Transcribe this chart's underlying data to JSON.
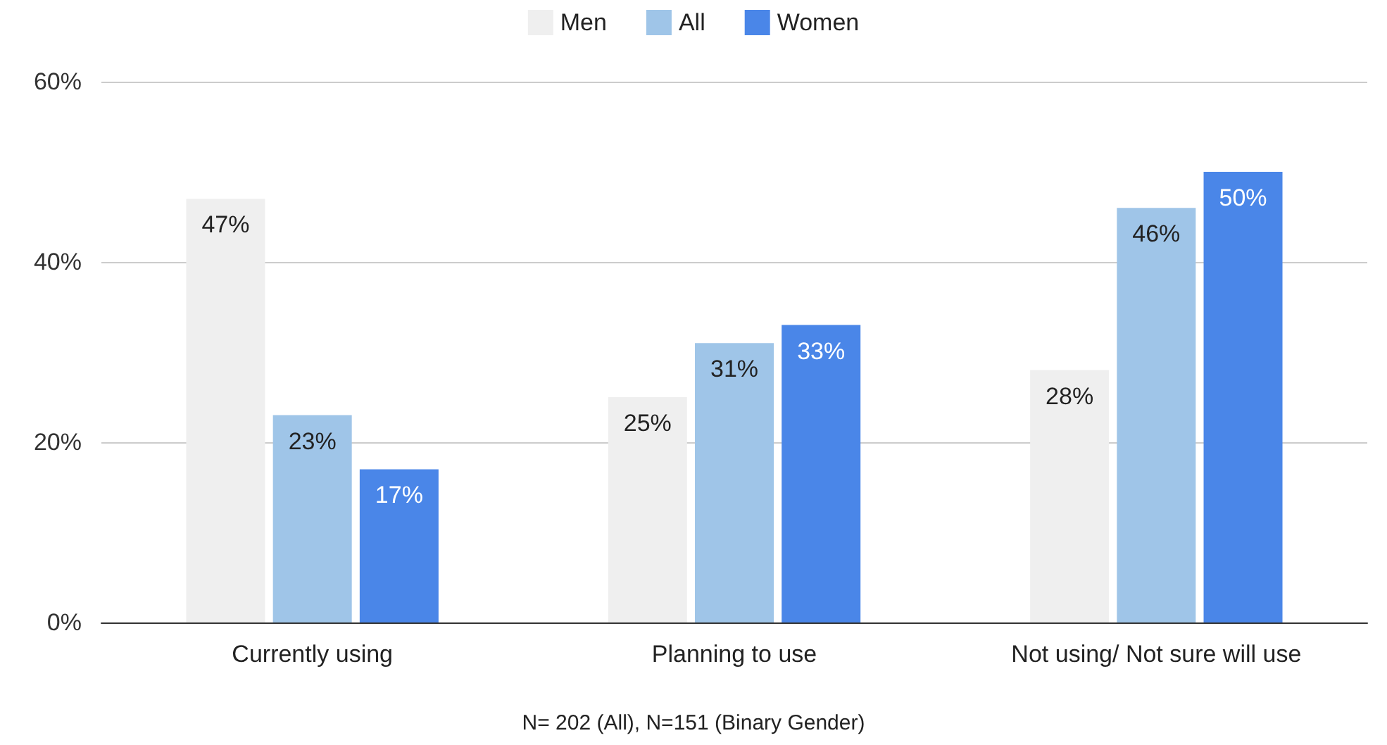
{
  "chart_data": {
    "type": "bar",
    "categories": [
      "Currently using",
      "Planning to use",
      "Not using/ Not sure will use"
    ],
    "series": [
      {
        "name": "Men",
        "color": "#efefef",
        "values": [
          47,
          25,
          28
        ],
        "value_labels": [
          "47%",
          "25%",
          "28%"
        ]
      },
      {
        "name": "All",
        "color": "#9fc5e8",
        "values": [
          23,
          31,
          46
        ],
        "value_labels": [
          "23%",
          "31%",
          "46%"
        ]
      },
      {
        "name": "Women",
        "color": "#4a86e8",
        "values": [
          17,
          33,
          50
        ],
        "value_labels": [
          "17%",
          "33%",
          "50%"
        ]
      }
    ],
    "ylim": [
      0,
      60
    ],
    "yticks": [
      {
        "value": 0,
        "label": "0%"
      },
      {
        "value": 20,
        "label": "20%"
      },
      {
        "value": 40,
        "label": "40%"
      },
      {
        "value": 60,
        "label": "60%"
      }
    ],
    "grid": "y",
    "legend": "top",
    "annotations": [
      "N= 202 (All), N=151 (Binary Gender)"
    ]
  }
}
